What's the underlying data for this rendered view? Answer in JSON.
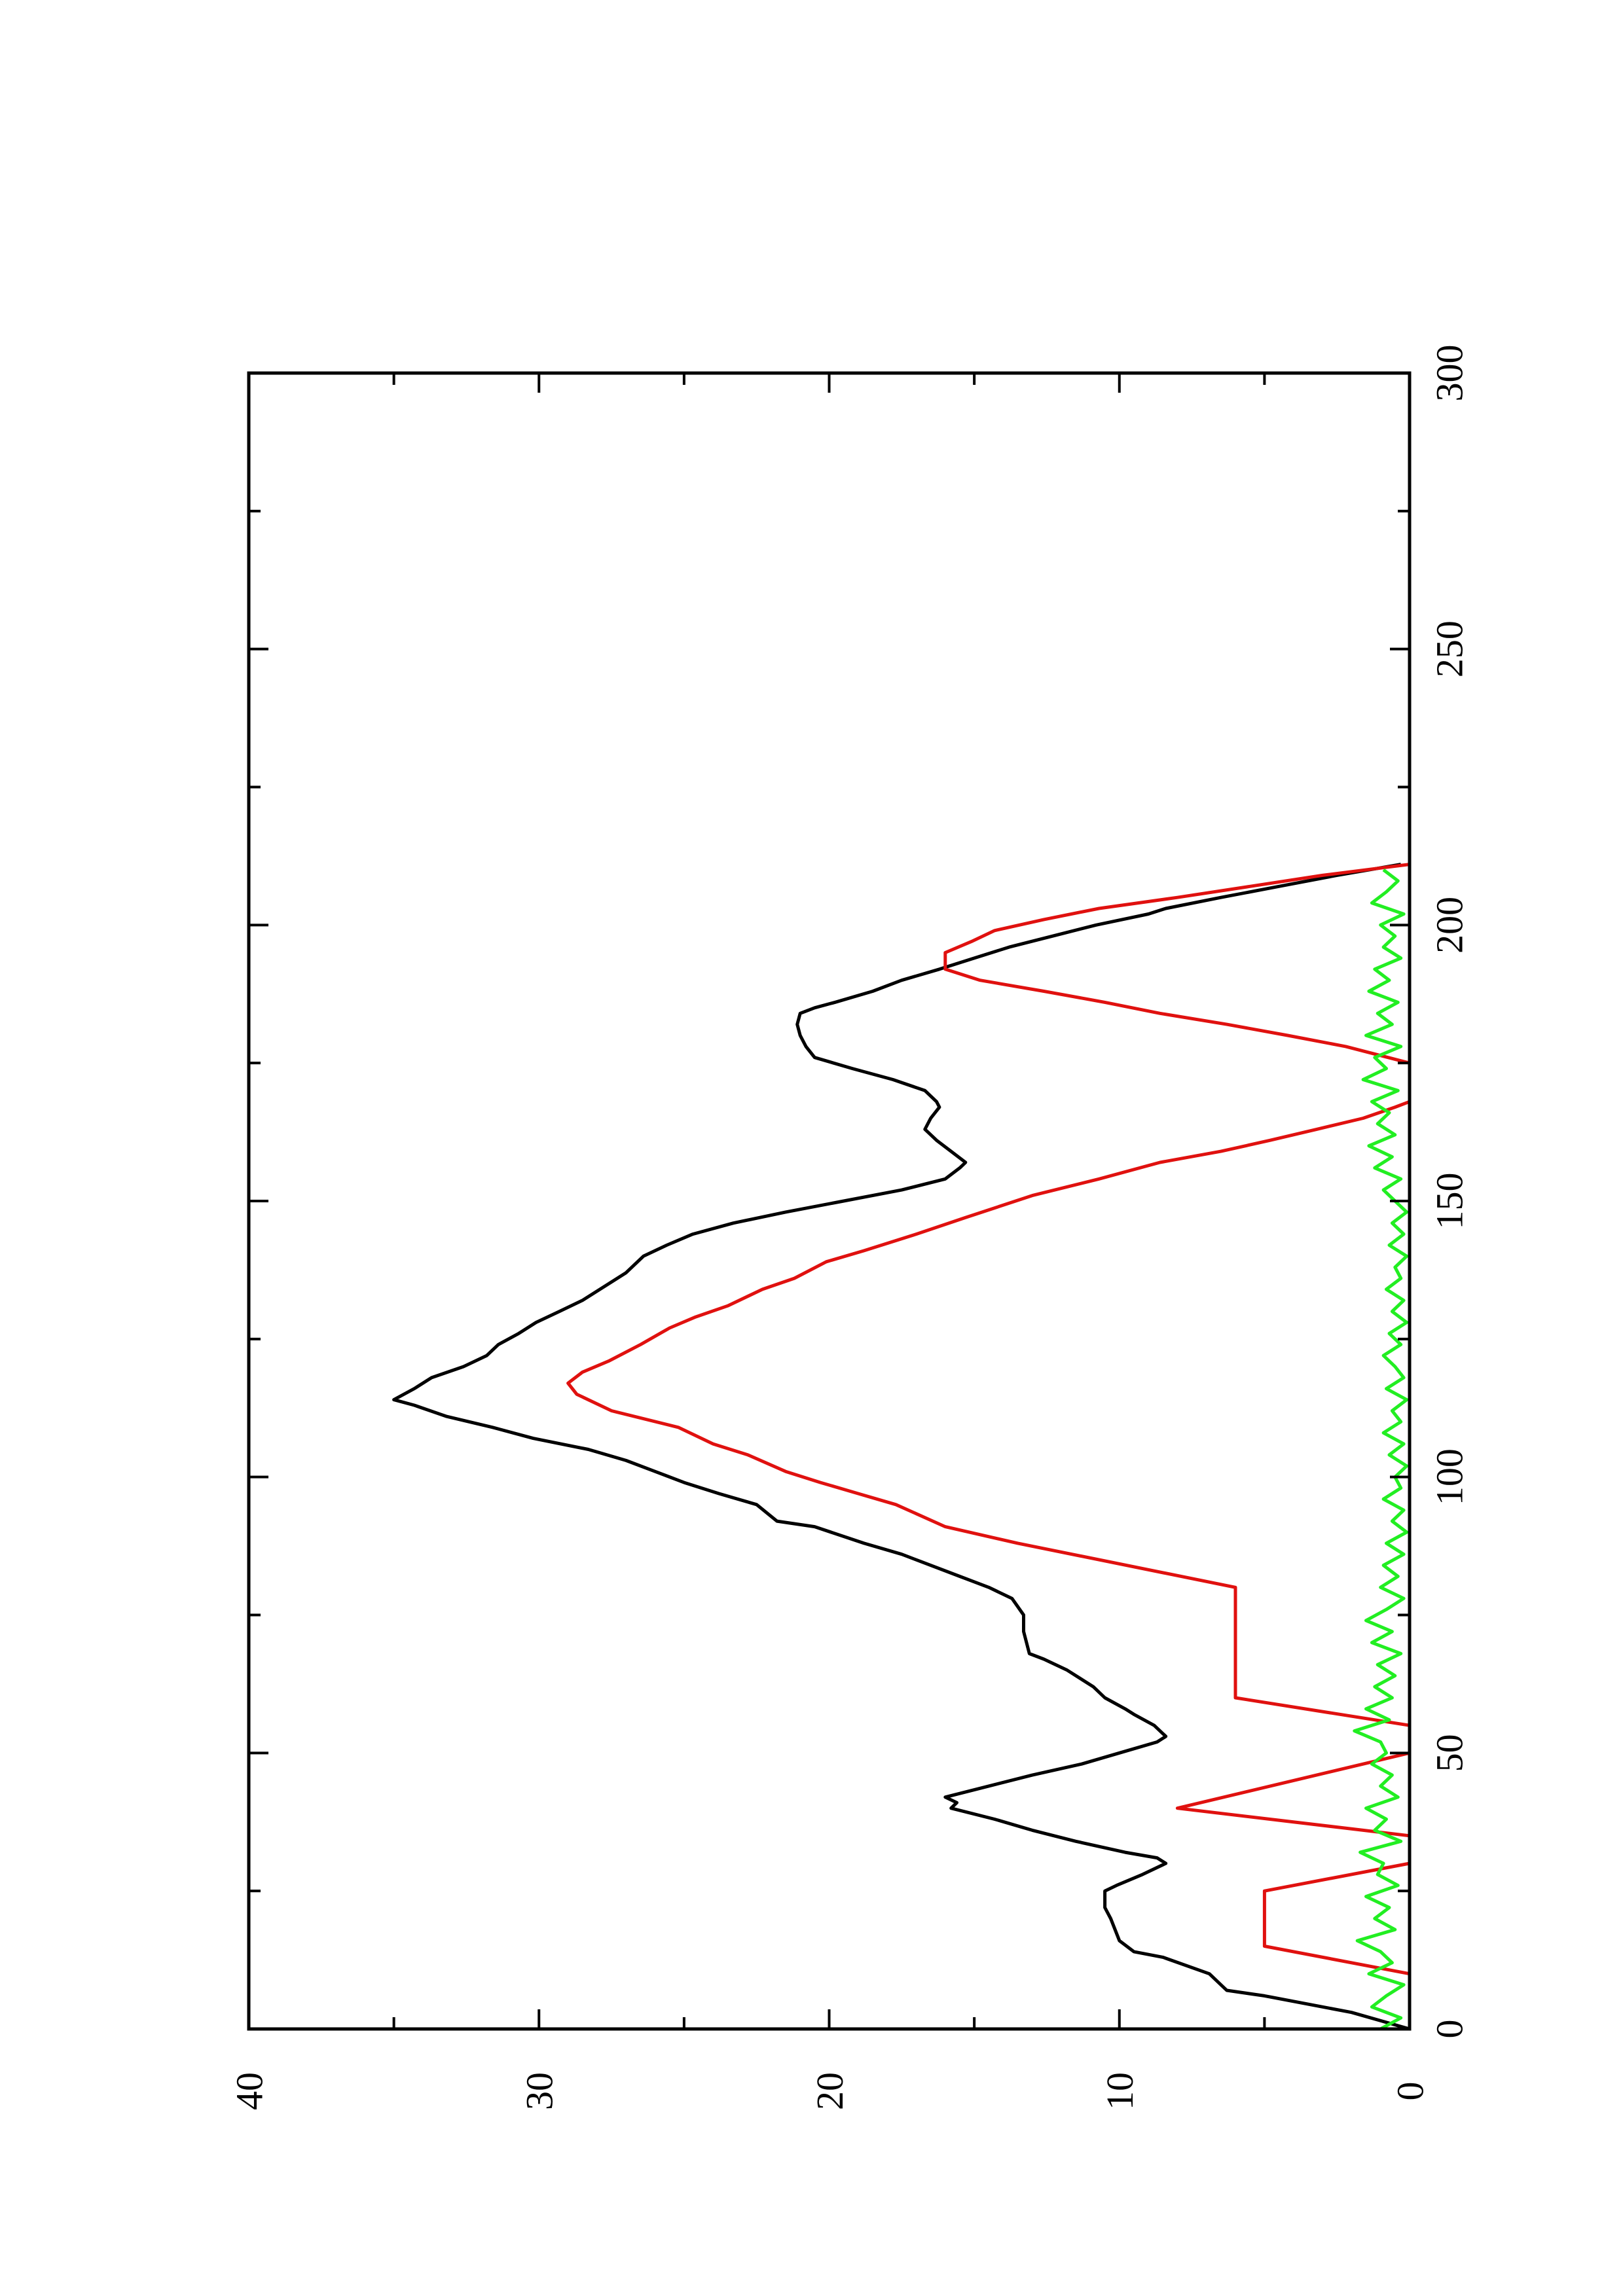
{
  "chart_data": {
    "type": "line",
    "orientation": "rotated-90-ccw",
    "title": "",
    "xlabel": "",
    "ylabel": "",
    "xlim": [
      0,
      300
    ],
    "ylim": [
      0,
      40
    ],
    "x_ticks": [
      "0",
      "50",
      "100",
      "150",
      "200",
      "250",
      "300"
    ],
    "y_ticks": [
      "0",
      "10",
      "20",
      "30",
      "40"
    ],
    "grid": false,
    "legend": "none",
    "series": [
      {
        "color": "#000000",
        "points": [
          [
            0,
            0
          ],
          [
            3,
            2
          ],
          [
            6,
            5
          ],
          [
            7,
            6.3
          ],
          [
            10,
            6.9
          ],
          [
            13,
            8.5
          ],
          [
            14,
            9.5
          ],
          [
            16,
            10
          ],
          [
            20,
            10.3
          ],
          [
            22,
            10.5
          ],
          [
            25,
            10.5
          ],
          [
            26,
            10.1
          ],
          [
            28,
            9.2
          ],
          [
            30,
            8.4
          ],
          [
            31,
            8.7
          ],
          [
            32,
            9.8
          ],
          [
            34,
            11.5
          ],
          [
            36,
            13
          ],
          [
            38,
            14.3
          ],
          [
            40,
            15.8
          ],
          [
            41,
            15.6
          ],
          [
            42,
            16
          ],
          [
            44,
            14.5
          ],
          [
            46,
            13
          ],
          [
            48,
            11.3
          ],
          [
            50,
            10
          ],
          [
            52,
            8.7
          ],
          [
            53,
            8.4
          ],
          [
            55,
            8.8
          ],
          [
            57,
            9.5
          ],
          [
            58,
            9.8
          ],
          [
            60,
            10.5
          ],
          [
            62,
            10.9
          ],
          [
            65,
            11.8
          ],
          [
            67,
            12.6
          ],
          [
            68,
            13.1
          ],
          [
            72,
            13.3
          ],
          [
            75,
            13.3
          ],
          [
            78,
            13.7
          ],
          [
            80,
            14.5
          ],
          [
            82,
            15.5
          ],
          [
            85,
            17
          ],
          [
            86,
            17.5
          ],
          [
            88,
            18.8
          ],
          [
            91,
            20.5
          ],
          [
            92,
            21.8
          ],
          [
            95,
            22.5
          ],
          [
            97,
            23.8
          ],
          [
            99,
            25
          ],
          [
            101,
            26
          ],
          [
            103,
            27
          ],
          [
            105,
            28.3
          ],
          [
            107,
            30.2
          ],
          [
            109,
            31.6
          ],
          [
            111,
            33.2
          ],
          [
            113,
            34.3
          ],
          [
            114,
            35
          ],
          [
            116,
            34.3
          ],
          [
            118,
            33.7
          ],
          [
            120,
            32.6
          ],
          [
            122,
            31.8
          ],
          [
            124,
            31.4
          ],
          [
            126,
            30.7
          ],
          [
            128,
            30.1
          ],
          [
            130,
            29.3
          ],
          [
            132,
            28.5
          ],
          [
            135,
            27.6
          ],
          [
            137,
            27
          ],
          [
            140,
            26.4
          ],
          [
            142,
            25.6
          ],
          [
            144,
            24.7
          ],
          [
            146,
            23.3
          ],
          [
            148,
            21.5
          ],
          [
            150,
            19.5
          ],
          [
            152,
            17.5
          ],
          [
            154,
            16
          ],
          [
            156,
            15.5
          ],
          [
            157,
            15.3
          ],
          [
            159,
            15.8
          ],
          [
            161,
            16.3
          ],
          [
            163,
            16.7
          ],
          [
            165,
            16.5
          ],
          [
            167,
            16.2
          ],
          [
            168,
            16.3
          ],
          [
            170,
            16.7
          ],
          [
            172,
            17.8
          ],
          [
            174,
            19.2
          ],
          [
            176,
            20.5
          ],
          [
            178,
            20.8
          ],
          [
            180,
            21
          ],
          [
            182,
            21.1
          ],
          [
            184,
            21
          ],
          [
            185,
            20.5
          ],
          [
            186,
            19.8
          ],
          [
            188,
            18.5
          ],
          [
            190,
            17.5
          ],
          [
            192,
            16.2
          ],
          [
            194,
            15
          ],
          [
            196,
            13.8
          ],
          [
            198,
            12.3
          ],
          [
            200,
            10.8
          ],
          [
            202,
            9
          ],
          [
            203,
            8.4
          ],
          [
            205,
            6.5
          ],
          [
            207,
            4.5
          ],
          [
            209,
            2.5
          ],
          [
            211,
            0.3
          ]
        ]
      },
      {
        "color": "#e0110f",
        "points": [
          [
            0,
            0
          ],
          [
            10,
            0
          ],
          [
            15,
            5
          ],
          [
            25,
            5
          ],
          [
            30,
            0
          ],
          [
            35,
            0
          ],
          [
            40,
            8
          ],
          [
            40,
            8
          ],
          [
            50,
            0
          ],
          [
            55,
            0
          ],
          [
            60,
            6
          ],
          [
            80,
            6
          ],
          [
            88,
            13.5
          ],
          [
            91,
            16
          ],
          [
            95,
            17.7
          ],
          [
            97,
            19
          ],
          [
            99,
            20.3
          ],
          [
            101,
            21.5
          ],
          [
            104,
            22.8
          ],
          [
            106,
            24
          ],
          [
            109,
            25.2
          ],
          [
            112,
            27.5
          ],
          [
            115,
            28.7
          ],
          [
            117,
            29
          ],
          [
            119,
            28.5
          ],
          [
            121,
            27.6
          ],
          [
            124,
            26.5
          ],
          [
            127,
            25.5
          ],
          [
            129,
            24.6
          ],
          [
            131,
            23.5
          ],
          [
            134,
            22.3
          ],
          [
            136,
            21.2
          ],
          [
            139,
            20.1
          ],
          [
            141,
            18.8
          ],
          [
            144,
            17
          ],
          [
            147,
            15.3
          ],
          [
            151,
            13
          ],
          [
            154,
            10.7
          ],
          [
            157,
            8.6
          ],
          [
            159,
            6.5
          ],
          [
            161,
            4.8
          ],
          [
            163,
            3.2
          ],
          [
            165,
            1.6
          ],
          [
            167,
            0.5
          ],
          [
            168,
            0
          ],
          [
            175,
            0
          ],
          [
            175,
            0
          ],
          [
            178,
            2.2
          ],
          [
            180,
            4.2
          ],
          [
            182,
            6.3
          ],
          [
            184,
            8.6
          ],
          [
            186,
            10.5
          ],
          [
            188,
            12.6
          ],
          [
            190,
            14.8
          ],
          [
            192,
            16
          ],
          [
            195,
            16
          ],
          [
            197,
            15.1
          ],
          [
            199,
            14.3
          ],
          [
            201,
            12.6
          ],
          [
            203,
            10.7
          ],
          [
            205,
            8
          ],
          [
            207,
            5.5
          ],
          [
            209,
            3
          ],
          [
            211,
            0
          ]
        ]
      },
      {
        "color": "#22ee22",
        "points": [
          [
            0,
            1.0
          ],
          [
            2,
            0.3
          ],
          [
            4,
            1.3
          ],
          [
            6,
            0.8
          ],
          [
            8,
            0.2
          ],
          [
            10,
            1.4
          ],
          [
            12,
            0.6
          ],
          [
            14,
            1.0
          ],
          [
            16,
            1.8
          ],
          [
            18,
            0.5
          ],
          [
            20,
            1.2
          ],
          [
            22,
            0.7
          ],
          [
            24,
            1.5
          ],
          [
            26,
            0.4
          ],
          [
            28,
            1.1
          ],
          [
            30,
            0.9
          ],
          [
            32,
            1.7
          ],
          [
            34,
            0.3
          ],
          [
            36,
            1.2
          ],
          [
            38,
            0.8
          ],
          [
            40,
            1.5
          ],
          [
            42,
            0.4
          ],
          [
            44,
            1.0
          ],
          [
            46,
            0.6
          ],
          [
            48,
            1.3
          ],
          [
            50,
            0.8
          ],
          [
            52,
            1.0
          ],
          [
            54,
            1.9
          ],
          [
            56,
            0.7
          ],
          [
            58,
            1.5
          ],
          [
            60,
            0.6
          ],
          [
            62,
            1.2
          ],
          [
            64,
            0.5
          ],
          [
            66,
            1.1
          ],
          [
            68,
            0.3
          ],
          [
            70,
            1.3
          ],
          [
            72,
            0.6
          ],
          [
            74,
            1.5
          ],
          [
            76,
            0.8
          ],
          [
            78,
            0.2
          ],
          [
            80,
            1.0
          ],
          [
            82,
            0.4
          ],
          [
            84,
            0.9
          ],
          [
            86,
            0.2
          ],
          [
            88,
            0.8
          ],
          [
            90,
            0.1
          ],
          [
            92,
            0.6
          ],
          [
            94,
            0.2
          ],
          [
            96,
            0.9
          ],
          [
            98,
            0.3
          ],
          [
            100,
            0.5
          ],
          [
            102,
            0.1
          ],
          [
            104,
            0.7
          ],
          [
            106,
            0.2
          ],
          [
            108,
            0.9
          ],
          [
            110,
            0.3
          ],
          [
            112,
            0.6
          ],
          [
            114,
            0.1
          ],
          [
            116,
            0.8
          ],
          [
            118,
            0.2
          ],
          [
            120,
            0.5
          ],
          [
            122,
            0.9
          ],
          [
            124,
            0.3
          ],
          [
            126,
            0.7
          ],
          [
            128,
            0.1
          ],
          [
            130,
            0.6
          ],
          [
            132,
            0.2
          ],
          [
            134,
            0.8
          ],
          [
            136,
            0.3
          ],
          [
            138,
            0.5
          ],
          [
            140,
            0.1
          ],
          [
            142,
            0.7
          ],
          [
            144,
            0.2
          ],
          [
            146,
            0.6
          ],
          [
            148,
            0.1
          ],
          [
            150,
            0.5
          ],
          [
            152,
            0.9
          ],
          [
            154,
            0.3
          ],
          [
            156,
            1.2
          ],
          [
            158,
            0.6
          ],
          [
            160,
            1.4
          ],
          [
            162,
            0.5
          ],
          [
            164,
            1.1
          ],
          [
            166,
            0.7
          ],
          [
            168,
            1.3
          ],
          [
            170,
            0.4
          ],
          [
            172,
            1.6
          ],
          [
            174,
            0.8
          ],
          [
            176,
            1.2
          ],
          [
            178,
            0.3
          ],
          [
            180,
            1.5
          ],
          [
            182,
            0.6
          ],
          [
            184,
            1.1
          ],
          [
            186,
            0.4
          ],
          [
            188,
            1.4
          ],
          [
            190,
            0.7
          ],
          [
            192,
            1.2
          ],
          [
            194,
            0.3
          ],
          [
            196,
            0.9
          ],
          [
            198,
            0.5
          ],
          [
            200,
            1.0
          ],
          [
            202,
            0.2
          ],
          [
            204,
            1.3
          ],
          [
            206,
            0.8
          ],
          [
            208,
            0.4
          ],
          [
            210,
            0.9
          ]
        ]
      }
    ]
  }
}
